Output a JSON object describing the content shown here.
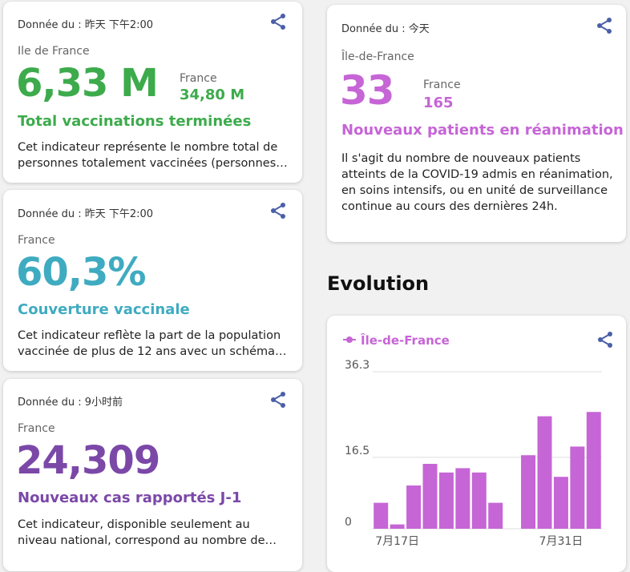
{
  "cards": [
    {
      "date": "Donnée du : 昨天 下午2:00",
      "region": "Ile de France",
      "value": "6,33 M",
      "france_label": "France",
      "france_value": "34,80 M",
      "title": "Total vaccinations terminées",
      "description": "Cet indicateur représente le nombre total de personnes totalement vaccinées (personnes ayant reçu un schéma vaccinal complet)",
      "color": "#3dab4c"
    },
    {
      "date": "Donnée du : 昨天 下午2:00",
      "region": "France",
      "value": "60,3%",
      "title": "Couverture vaccinale",
      "description": "Cet indicateur reflète la part de la population vaccinée de plus de 12 ans avec un schéma vaccinal complet",
      "color": "#3fabc0"
    },
    {
      "date": "Donnée du : 9小时前",
      "region": "France",
      "value": "24,309",
      "title": "Nouveaux cas rapportés J-1",
      "description": "Cet indicateur, disponible seulement au niveau national, correspond au nombre de nouveaux cas",
      "color": "#7b48a8"
    },
    {
      "date": "Donnée du : 今天",
      "region": "Île-de-France",
      "value": "33",
      "france_label": "France",
      "france_value": "165",
      "title": "Nouveaux patients en réanimation",
      "description": "Il s'agit du nombre de nouveaux patients atteints de la COVID-19 admis en réanimation, en soins intensifs, ou en unité de surveillance continue au cours des dernières 24h.",
      "color": "#c665d6"
    }
  ],
  "evolution_heading": "Evolution",
  "share_icon_color": "#4b5fa8",
  "chart_data": {
    "type": "bar",
    "legend": "Île-de-France",
    "color": "#c665d6",
    "ylim": [
      0,
      36.3
    ],
    "yticks": [
      "36.3",
      "16.5",
      "0"
    ],
    "yticks_values": [
      36.3,
      16.5,
      0
    ],
    "x_tick_labels": [
      "7月17日",
      "7月31日"
    ],
    "values": [
      6,
      1,
      10,
      15,
      13,
      14,
      13,
      6,
      0,
      17,
      26,
      12,
      19,
      27
    ]
  }
}
